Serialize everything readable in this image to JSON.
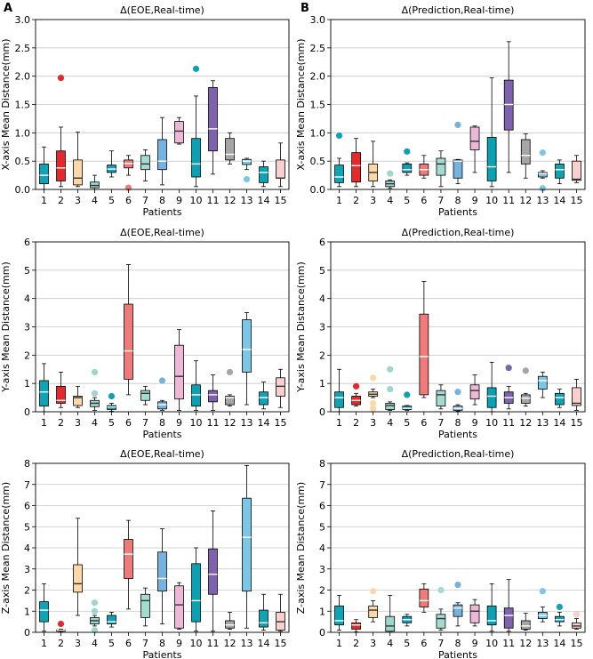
{
  "panel_letters": [
    "A",
    "B"
  ],
  "colors": [
    "#0ea4b5",
    "#e6282b",
    "#fcd8a8",
    "#9ed6cc",
    "#0fa0b6",
    "#f07a7a",
    "#a4dbd1",
    "#74b3e0",
    "#edb8d8",
    "#0aa1b4",
    "#7f62ad",
    "#a6a6a6",
    "#7dc7e6",
    "#0ea3b5",
    "#f9d0cd"
  ],
  "chart_data": [
    {
      "id": "A-x",
      "type": "box",
      "title": "Δ(EOE,Real-time)",
      "xlabel": "Patients",
      "ylabel": "X-axis Mean Distance(mm)",
      "ylim": [
        0,
        3
      ],
      "yticks": [
        "0.0",
        "0.5",
        "1.0",
        "1.5",
        "2.0",
        "2.5",
        "3.0"
      ],
      "grid": true,
      "categories": [
        "1",
        "2",
        "3",
        "4",
        "5",
        "6",
        "7",
        "8",
        "9",
        "10",
        "11",
        "12",
        "13",
        "14",
        "15"
      ],
      "boxes": [
        {
          "min": 0.0,
          "q1": 0.1,
          "median": 0.25,
          "q3": 0.45,
          "max": 0.75,
          "outliers": []
        },
        {
          "min": 0.05,
          "q1": 0.15,
          "median": 0.38,
          "q3": 0.68,
          "max": 1.1,
          "outliers": [
            1.97
          ]
        },
        {
          "min": 0.05,
          "q1": 0.08,
          "median": 0.2,
          "q3": 0.52,
          "max": 1.01,
          "outliers": []
        },
        {
          "min": 0.0,
          "q1": 0.03,
          "median": 0.07,
          "q3": 0.13,
          "max": 0.25,
          "outliers": []
        },
        {
          "min": 0.22,
          "q1": 0.3,
          "median": 0.36,
          "q3": 0.43,
          "max": 0.68,
          "outliers": []
        },
        {
          "min": 0.25,
          "q1": 0.38,
          "median": 0.46,
          "q3": 0.52,
          "max": 0.6,
          "outliers": [
            0.03
          ]
        },
        {
          "min": 0.15,
          "q1": 0.35,
          "median": 0.45,
          "q3": 0.6,
          "max": 0.7,
          "outliers": []
        },
        {
          "min": 0.08,
          "q1": 0.35,
          "median": 0.5,
          "q3": 0.88,
          "max": 1.27,
          "outliers": []
        },
        {
          "min": 0.8,
          "q1": 0.82,
          "median": 1.03,
          "q3": 1.2,
          "max": 1.27,
          "outliers": []
        },
        {
          "min": 0.05,
          "q1": 0.22,
          "median": 0.45,
          "q3": 0.9,
          "max": 1.65,
          "outliers": [
            2.13
          ]
        },
        {
          "min": 0.27,
          "q1": 0.68,
          "median": 1.07,
          "q3": 1.8,
          "max": 1.92,
          "outliers": []
        },
        {
          "min": 0.45,
          "q1": 0.52,
          "median": 0.62,
          "q3": 0.9,
          "max": 1.0,
          "outliers": []
        },
        {
          "min": 0.35,
          "q1": 0.44,
          "median": 0.5,
          "q3": 0.53,
          "max": 0.55,
          "outliers": [
            0.18
          ]
        },
        {
          "min": 0.05,
          "q1": 0.12,
          "median": 0.3,
          "q3": 0.4,
          "max": 0.5,
          "outliers": []
        },
        {
          "min": 0.05,
          "q1": 0.2,
          "median": 0.2,
          "q3": 0.52,
          "max": 0.82,
          "outliers": []
        }
      ]
    },
    {
      "id": "B-x",
      "type": "box",
      "title": "Δ(Prediction,Real-time)",
      "xlabel": "Patients",
      "ylabel": "X-axis Mean Distance(mm)",
      "ylim": [
        0,
        3
      ],
      "yticks": [
        "0.0",
        "0.5",
        "1.0",
        "1.5",
        "2.0",
        "2.5",
        "3.0"
      ],
      "grid": true,
      "categories": [
        "1",
        "2",
        "3",
        "4",
        "5",
        "6",
        "7",
        "8",
        "9",
        "10",
        "11",
        "12",
        "13",
        "14",
        "15"
      ],
      "boxes": [
        {
          "min": 0.05,
          "q1": 0.12,
          "median": 0.22,
          "q3": 0.43,
          "max": 0.55,
          "outliers": [
            0.95
          ]
        },
        {
          "min": 0.05,
          "q1": 0.13,
          "median": 0.42,
          "q3": 0.65,
          "max": 0.9,
          "outliers": []
        },
        {
          "min": 0.05,
          "q1": 0.15,
          "median": 0.3,
          "q3": 0.45,
          "max": 0.85,
          "outliers": []
        },
        {
          "min": 0.02,
          "q1": 0.05,
          "median": 0.1,
          "q3": 0.15,
          "max": 0.17,
          "outliers": [
            0.28
          ]
        },
        {
          "min": 0.25,
          "q1": 0.3,
          "median": 0.35,
          "q3": 0.45,
          "max": 0.47,
          "outliers": [
            0.67
          ]
        },
        {
          "min": 0.2,
          "q1": 0.25,
          "median": 0.35,
          "q3": 0.45,
          "max": 0.6,
          "outliers": []
        },
        {
          "min": 0.05,
          "q1": 0.25,
          "median": 0.45,
          "q3": 0.55,
          "max": 0.68,
          "outliers": []
        },
        {
          "min": 0.1,
          "q1": 0.2,
          "median": 0.5,
          "q3": 0.52,
          "max": 0.53,
          "outliers": [
            1.14
          ]
        },
        {
          "min": 0.3,
          "q1": 0.7,
          "median": 0.85,
          "q3": 1.1,
          "max": 1.12,
          "outliers": []
        },
        {
          "min": 0.05,
          "q1": 0.15,
          "median": 0.4,
          "q3": 0.92,
          "max": 1.97,
          "outliers": []
        },
        {
          "min": 0.3,
          "q1": 1.05,
          "median": 1.5,
          "q3": 1.93,
          "max": 2.61,
          "outliers": []
        },
        {
          "min": 0.2,
          "q1": 0.45,
          "median": 0.6,
          "q3": 0.88,
          "max": 0.98,
          "outliers": []
        },
        {
          "min": 0.2,
          "q1": 0.22,
          "median": 0.28,
          "q3": 0.3,
          "max": 0.33,
          "outliers": [
            0.65,
            0.02
          ]
        },
        {
          "min": 0.1,
          "q1": 0.2,
          "median": 0.35,
          "q3": 0.45,
          "max": 0.52,
          "outliers": []
        },
        {
          "min": 0.12,
          "q1": 0.16,
          "median": 0.18,
          "q3": 0.5,
          "max": 0.6,
          "outliers": []
        }
      ]
    },
    {
      "id": "A-y",
      "type": "box",
      "title": "Δ(EOE,Real-time)",
      "xlabel": "Patients",
      "ylabel": "Y-axis Mean Distance(mm)",
      "ylim": [
        0,
        6
      ],
      "yticks": [
        "0",
        "1",
        "2",
        "3",
        "4",
        "5",
        "6"
      ],
      "grid": true,
      "categories": [
        "1",
        "2",
        "3",
        "4",
        "5",
        "6",
        "7",
        "8",
        "9",
        "10",
        "11",
        "12",
        "13",
        "14",
        "15"
      ],
      "boxes": [
        {
          "min": 0.0,
          "q1": 0.2,
          "median": 0.7,
          "q3": 1.1,
          "max": 1.7,
          "outliers": []
        },
        {
          "min": 0.15,
          "q1": 0.3,
          "median": 0.4,
          "q3": 0.9,
          "max": 1.4,
          "outliers": []
        },
        {
          "min": 0.15,
          "q1": 0.22,
          "median": 0.5,
          "q3": 0.55,
          "max": 0.9,
          "outliers": []
        },
        {
          "min": 0.05,
          "q1": 0.18,
          "median": 0.3,
          "q3": 0.4,
          "max": 0.5,
          "outliers": [
            1.4,
            0.65
          ]
        },
        {
          "min": 0.02,
          "q1": 0.08,
          "median": 0.17,
          "q3": 0.22,
          "max": 0.3,
          "outliers": [
            0.55
          ]
        },
        {
          "min": 0.6,
          "q1": 1.15,
          "median": 2.15,
          "q3": 3.8,
          "max": 5.2,
          "outliers": []
        },
        {
          "min": 0.25,
          "q1": 0.4,
          "median": 0.65,
          "q3": 0.75,
          "max": 0.9,
          "outliers": []
        },
        {
          "min": 0.05,
          "q1": 0.1,
          "median": 0.25,
          "q3": 0.35,
          "max": 0.4,
          "outliers": [
            1.1
          ]
        },
        {
          "min": 0.05,
          "q1": 0.45,
          "median": 1.25,
          "q3": 2.35,
          "max": 2.9,
          "outliers": []
        },
        {
          "min": 0.05,
          "q1": 0.2,
          "median": 0.6,
          "q3": 0.95,
          "max": 1.8,
          "outliers": []
        },
        {
          "min": 0.05,
          "q1": 0.35,
          "median": 0.6,
          "q3": 0.75,
          "max": 1.3,
          "outliers": []
        },
        {
          "min": 0.2,
          "q1": 0.25,
          "median": 0.5,
          "q3": 0.55,
          "max": 0.6,
          "outliers": [
            1.4
          ]
        },
        {
          "min": 0.25,
          "q1": 1.4,
          "median": 2.2,
          "q3": 3.25,
          "max": 3.5,
          "outliers": []
        },
        {
          "min": 0.1,
          "q1": 0.25,
          "median": 0.5,
          "q3": 0.7,
          "max": 1.05,
          "outliers": []
        },
        {
          "min": 0.15,
          "q1": 0.55,
          "median": 0.9,
          "q3": 1.2,
          "max": 1.5,
          "outliers": []
        }
      ]
    },
    {
      "id": "B-y",
      "type": "box",
      "title": "Δ(Prediction,Real-time)",
      "xlabel": "Patients",
      "ylabel": "Y-axis Mean Distance(mm)",
      "ylim": [
        0,
        6
      ],
      "yticks": [
        "0",
        "1",
        "2",
        "3",
        "4",
        "5",
        "6"
      ],
      "grid": true,
      "categories": [
        "1",
        "2",
        "3",
        "4",
        "5",
        "6",
        "7",
        "8",
        "9",
        "10",
        "11",
        "12",
        "13",
        "14",
        "15"
      ],
      "boxes": [
        {
          "min": 0.0,
          "q1": 0.15,
          "median": 0.5,
          "q3": 0.7,
          "max": 1.5,
          "outliers": []
        },
        {
          "min": 0.2,
          "q1": 0.25,
          "median": 0.4,
          "q3": 0.55,
          "max": 0.65,
          "outliers": [
            0.9
          ]
        },
        {
          "min": 0.5,
          "q1": 0.55,
          "median": 0.62,
          "q3": 0.7,
          "max": 0.8,
          "outliers": [
            1.2,
            0.3,
            0.1
          ]
        },
        {
          "min": 0.05,
          "q1": 0.08,
          "median": 0.22,
          "q3": 0.3,
          "max": 0.35,
          "outliers": [
            1.5,
            0.8
          ]
        },
        {
          "min": 0.05,
          "q1": 0.08,
          "median": 0.12,
          "q3": 0.2,
          "max": 0.22,
          "outliers": [
            0.6
          ]
        },
        {
          "min": 0.5,
          "q1": 0.6,
          "median": 1.95,
          "q3": 3.45,
          "max": 4.6,
          "outliers": []
        },
        {
          "min": 0.1,
          "q1": 0.2,
          "median": 0.6,
          "q3": 0.75,
          "max": 0.95,
          "outliers": []
        },
        {
          "min": 0.02,
          "q1": 0.05,
          "median": 0.12,
          "q3": 0.2,
          "max": 0.25,
          "outliers": [
            0.7
          ]
        },
        {
          "min": 0.25,
          "q1": 0.45,
          "median": 0.75,
          "q3": 0.95,
          "max": 1.3,
          "outliers": []
        },
        {
          "min": 0.0,
          "q1": 0.15,
          "median": 0.55,
          "q3": 0.85,
          "max": 1.75,
          "outliers": []
        },
        {
          "min": 0.1,
          "q1": 0.3,
          "median": 0.5,
          "q3": 0.7,
          "max": 0.9,
          "outliers": [
            1.55
          ]
        },
        {
          "min": 0.2,
          "q1": 0.3,
          "median": 0.48,
          "q3": 0.6,
          "max": 0.65,
          "outliers": [
            1.45
          ]
        },
        {
          "min": 0.5,
          "q1": 0.8,
          "median": 1.1,
          "q3": 1.25,
          "max": 1.4,
          "outliers": []
        },
        {
          "min": 0.15,
          "q1": 0.25,
          "median": 0.5,
          "q3": 0.65,
          "max": 0.8,
          "outliers": []
        },
        {
          "min": 0.05,
          "q1": 0.22,
          "median": 0.3,
          "q3": 0.85,
          "max": 1.15,
          "outliers": []
        }
      ]
    },
    {
      "id": "A-z",
      "type": "box",
      "title": "Δ(EOE,Real-time)",
      "xlabel": "Patients",
      "ylabel": "Z-axis Mean Distance(mm)",
      "ylim": [
        0,
        8
      ],
      "yticks": [
        "0",
        "1",
        "2",
        "3",
        "4",
        "5",
        "6",
        "7",
        "8"
      ],
      "grid": true,
      "categories": [
        "1",
        "2",
        "3",
        "4",
        "5",
        "6",
        "7",
        "8",
        "9",
        "10",
        "11",
        "12",
        "13",
        "14",
        "15"
      ],
      "boxes": [
        {
          "min": 0.05,
          "q1": 0.5,
          "median": 1.05,
          "q3": 1.45,
          "max": 2.3,
          "outliers": []
        },
        {
          "min": 0.02,
          "q1": 0.05,
          "median": 0.1,
          "q3": 0.12,
          "max": 0.15,
          "outliers": [
            0.4
          ]
        },
        {
          "min": 0.8,
          "q1": 1.9,
          "median": 2.3,
          "q3": 3.2,
          "max": 5.4,
          "outliers": []
        },
        {
          "min": 0.3,
          "q1": 0.4,
          "median": 0.55,
          "q3": 0.7,
          "max": 0.8,
          "outliers": [
            1.4,
            1.0,
            0.1
          ]
        },
        {
          "min": 0.25,
          "q1": 0.4,
          "median": 0.5,
          "q3": 0.8,
          "max": 0.95,
          "outliers": []
        },
        {
          "min": 1.1,
          "q1": 2.55,
          "median": 3.7,
          "q3": 4.4,
          "max": 5.3,
          "outliers": []
        },
        {
          "min": 0.3,
          "q1": 0.7,
          "median": 1.5,
          "q3": 1.8,
          "max": 2.1,
          "outliers": []
        },
        {
          "min": 0.4,
          "q1": 1.95,
          "median": 2.55,
          "q3": 3.8,
          "max": 4.9,
          "outliers": []
        },
        {
          "min": 0.15,
          "q1": 0.2,
          "median": 1.3,
          "q3": 2.2,
          "max": 2.35,
          "outliers": []
        },
        {
          "min": 0.05,
          "q1": 0.5,
          "median": 1.5,
          "q3": 3.25,
          "max": 4.0,
          "outliers": []
        },
        {
          "min": 0.05,
          "q1": 1.8,
          "median": 2.75,
          "q3": 3.95,
          "max": 5.75,
          "outliers": []
        },
        {
          "min": 0.15,
          "q1": 0.2,
          "median": 0.35,
          "q3": 0.55,
          "max": 0.95,
          "outliers": []
        },
        {
          "min": 0.2,
          "q1": 1.95,
          "median": 4.5,
          "q3": 6.35,
          "max": 7.9,
          "outliers": []
        },
        {
          "min": 0.1,
          "q1": 0.25,
          "median": 0.45,
          "q3": 1.05,
          "max": 1.8,
          "outliers": []
        },
        {
          "min": 0.05,
          "q1": 0.1,
          "median": 0.5,
          "q3": 0.95,
          "max": 1.8,
          "outliers": []
        }
      ]
    },
    {
      "id": "B-z",
      "type": "box",
      "title": "Δ(Prediction,Real-time)",
      "xlabel": "Patients",
      "ylabel": "Z-axis Mean Distance(mm)",
      "ylim": [
        0,
        8
      ],
      "yticks": [
        "0",
        "1",
        "2",
        "3",
        "4",
        "5",
        "6",
        "7",
        "8"
      ],
      "grid": true,
      "categories": [
        "1",
        "2",
        "3",
        "4",
        "5",
        "6",
        "7",
        "8",
        "9",
        "10",
        "11",
        "12",
        "13",
        "14",
        "15"
      ],
      "boxes": [
        {
          "min": 0.1,
          "q1": 0.35,
          "median": 0.55,
          "q3": 1.25,
          "max": 1.75,
          "outliers": []
        },
        {
          "min": 0.02,
          "q1": 0.15,
          "median": 0.35,
          "q3": 0.45,
          "max": 0.6,
          "outliers": []
        },
        {
          "min": 0.5,
          "q1": 0.7,
          "median": 1.05,
          "q3": 1.25,
          "max": 1.5,
          "outliers": [
            1.95
          ]
        },
        {
          "min": 0.05,
          "q1": 0.05,
          "median": 0.3,
          "q3": 0.75,
          "max": 1.75,
          "outliers": []
        },
        {
          "min": 0.3,
          "q1": 0.45,
          "median": 0.6,
          "q3": 0.75,
          "max": 0.85,
          "outliers": []
        },
        {
          "min": 0.95,
          "q1": 1.2,
          "median": 1.5,
          "q3": 2.05,
          "max": 2.3,
          "outliers": []
        },
        {
          "min": 0.1,
          "q1": 0.2,
          "median": 0.65,
          "q3": 0.85,
          "max": 1.1,
          "outliers": [
            2.0
          ]
        },
        {
          "min": 0.3,
          "q1": 0.75,
          "median": 1.15,
          "q3": 1.3,
          "max": 1.4,
          "outliers": [
            2.25
          ]
        },
        {
          "min": 0.3,
          "q1": 0.45,
          "median": 1.0,
          "q3": 1.3,
          "max": 1.55,
          "outliers": []
        },
        {
          "min": 0.05,
          "q1": 0.35,
          "median": 0.55,
          "q3": 1.25,
          "max": 2.3,
          "outliers": []
        },
        {
          "min": 0.05,
          "q1": 0.2,
          "median": 0.8,
          "q3": 1.15,
          "max": 2.5,
          "outliers": []
        },
        {
          "min": 0.1,
          "q1": 0.15,
          "median": 0.3,
          "q3": 0.55,
          "max": 0.9,
          "outliers": []
        },
        {
          "min": 0.5,
          "q1": 0.65,
          "median": 0.8,
          "q3": 0.95,
          "max": 1.2,
          "outliers": [
            1.95
          ]
        },
        {
          "min": 0.3,
          "q1": 0.5,
          "median": 0.6,
          "q3": 0.75,
          "max": 0.95,
          "outliers": [
            1.2
          ]
        },
        {
          "min": 0.15,
          "q1": 0.2,
          "median": 0.3,
          "q3": 0.45,
          "max": 0.65,
          "outliers": [
            0.85
          ]
        }
      ]
    }
  ]
}
